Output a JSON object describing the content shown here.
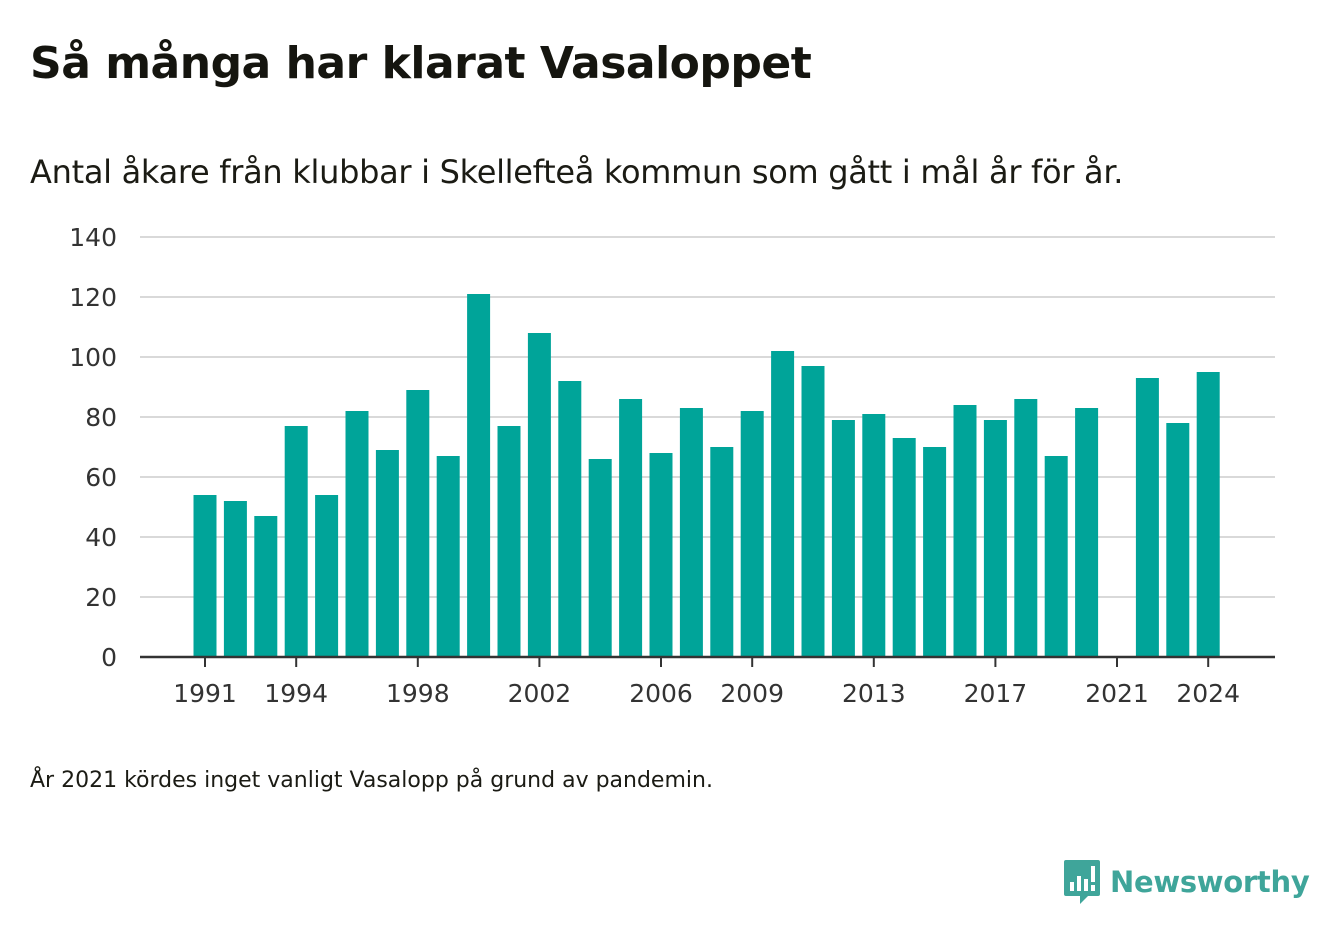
{
  "title": "Så många har klarat Vasaloppet",
  "subtitle": "Antal åkare från klubbar i Skellefteå kommun som gått i mål år för år.",
  "footnote": "År 2021 kördes inget vanligt Vasalopp på grund av pandemin.",
  "brand": {
    "name": "Newsworthy",
    "icon": "newsworthy-logo-icon"
  },
  "colors": {
    "bar": "#00a499",
    "grid": "#d9d9d9",
    "axis": "#333333",
    "brand": "#3fa59a"
  },
  "chart_data": {
    "type": "bar",
    "categories": [
      "1991",
      "1992",
      "1993",
      "1994",
      "1995",
      "1996",
      "1997",
      "1998",
      "1999",
      "2000",
      "2001",
      "2002",
      "2003",
      "2004",
      "2005",
      "2006",
      "2007",
      "2008",
      "2009",
      "2010",
      "2011",
      "2012",
      "2013",
      "2014",
      "2015",
      "2016",
      "2017",
      "2018",
      "2019",
      "2020",
      "2021",
      "2022",
      "2023",
      "2024"
    ],
    "values": [
      54,
      52,
      47,
      77,
      54,
      82,
      69,
      89,
      67,
      121,
      77,
      108,
      92,
      66,
      86,
      68,
      83,
      70,
      82,
      102,
      97,
      79,
      81,
      73,
      70,
      84,
      79,
      86,
      67,
      83,
      null,
      93,
      78,
      95
    ],
    "xticks": [
      "1991",
      "1994",
      "1998",
      "2002",
      "2006",
      "2009",
      "2013",
      "2017",
      "2021",
      "2024"
    ],
    "yticks": [
      0,
      20,
      40,
      60,
      80,
      100,
      120,
      140
    ],
    "ylim": [
      0,
      140
    ],
    "xlabel": "",
    "ylabel": "",
    "grid": true
  }
}
